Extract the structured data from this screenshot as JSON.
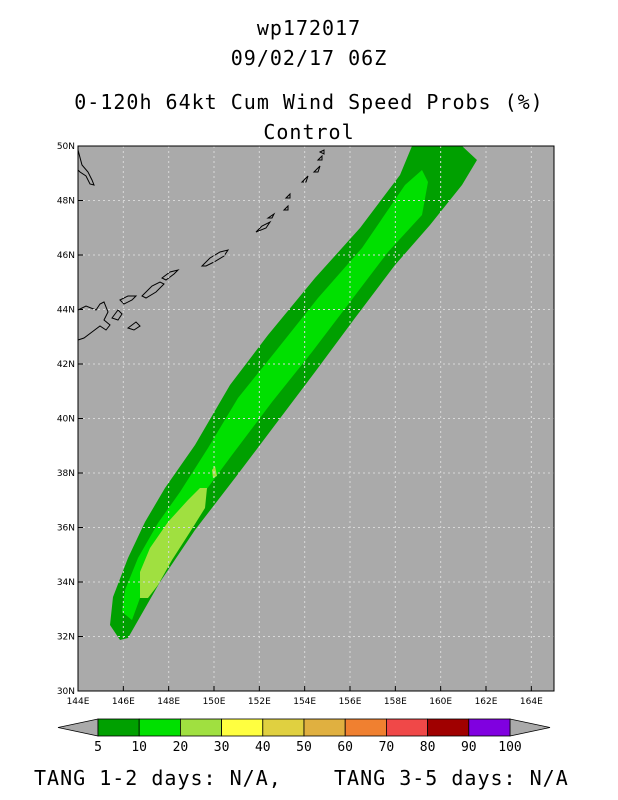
{
  "header": {
    "storm_id": "wp172017",
    "datetime": "09/02/17 06Z",
    "product": "0-120h 64kt Cum Wind Speed Probs (%)",
    "member": "Control"
  },
  "map": {
    "background_color": "#aaaaaa",
    "lat_range": [
      30,
      50
    ],
    "lon_range": [
      144,
      165
    ],
    "lat_ticks": [
      "30N",
      "32N",
      "34N",
      "36N",
      "38N",
      "40N",
      "42N",
      "44N",
      "46N",
      "48N",
      "50N"
    ],
    "lon_ticks": [
      "144E",
      "146E",
      "148E",
      "150E",
      "152E",
      "154E",
      "156E",
      "158E",
      "160E",
      "162E",
      "164E"
    ]
  },
  "colorbar": {
    "labels": [
      "5",
      "10",
      "20",
      "30",
      "40",
      "50",
      "60",
      "70",
      "80",
      "90",
      "100"
    ],
    "colors": [
      "#00a000",
      "#00e000",
      "#a0e040",
      "#ffff40",
      "#e0d040",
      "#e0b040",
      "#f08030",
      "#f04848",
      "#a00000",
      "#8000e0"
    ]
  },
  "probability_swath": {
    "levels": [
      {
        "min_percent": 5,
        "color": "#00a000"
      },
      {
        "min_percent": 10,
        "color": "#00e000"
      },
      {
        "min_percent": 20,
        "color": "#a0e040"
      }
    ]
  },
  "footer": {
    "tang_1_2": "TANG 1-2 days:  N/A,",
    "tang_3_5": "TANG 3-5 days:  N/A"
  }
}
